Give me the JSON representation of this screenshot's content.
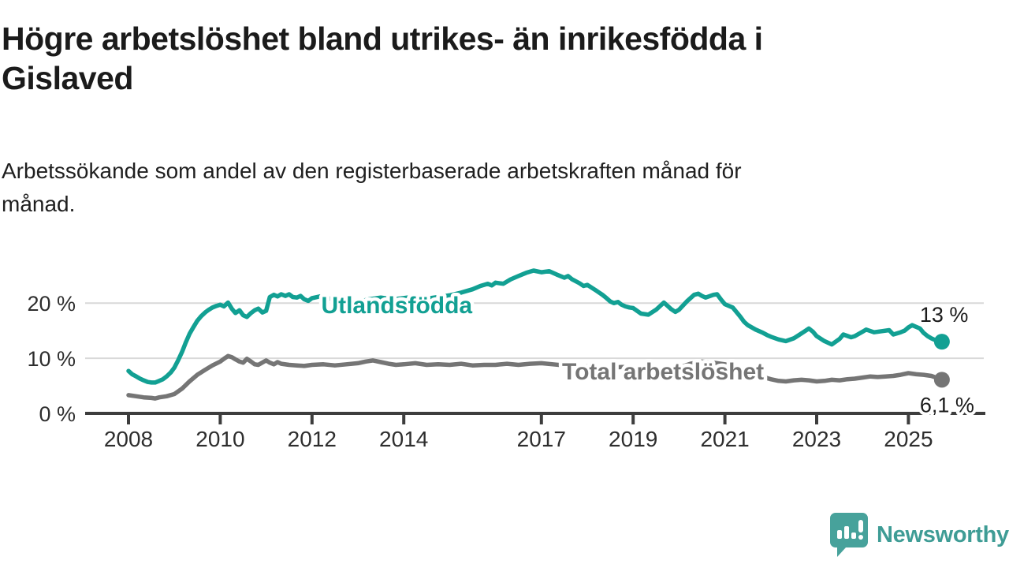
{
  "header": {
    "title_line1": "Högre arbetslöshet bland utrikes- än inrikesfödda i",
    "title_line2": "Gislaved",
    "subtitle_line1": "Arbetssökande som andel av den registerbaserade arbetskraften månad för",
    "subtitle_line2": "månad."
  },
  "branding": {
    "logo_text": "Newsworthy",
    "logo_color": "#3e9c95",
    "logo_bubble_color": "#47a29b"
  },
  "chart_data": {
    "type": "line",
    "title": "Högre arbetslöshet bland utrikes- än inrikesfödda i Gislaved",
    "subtitle": "Arbetssökande som andel av den registerbaserade arbetskraften månad för månad.",
    "x_tick_labels": [
      "2008",
      "2010",
      "2012",
      "2014",
      "2017",
      "2019",
      "2021",
      "2023",
      "2025"
    ],
    "x_tick_years": [
      2008,
      2010,
      2012,
      2014,
      2017,
      2019,
      2021,
      2023,
      2025
    ],
    "y_ticks": [
      {
        "value": 0,
        "label": "0 %"
      },
      {
        "value": 10,
        "label": "10 %"
      },
      {
        "value": 20,
        "label": "20 %"
      }
    ],
    "x_range": [
      2008.0,
      2025.73
    ],
    "y_range": [
      0,
      29
    ],
    "grid": "horizontal-only",
    "legend_position": "inline-labels-on-lines",
    "axis_color": "#3d3d3d",
    "grid_color": "#d9d9d9",
    "tick_label_color": "#2e2e2e",
    "end_label_color": "#1b1b1b",
    "series": [
      {
        "name": "Utlandsfödda",
        "color": "#12a093",
        "end_value_label": "13 %",
        "label_anchor": {
          "year": 2012.2,
          "value": 19.6
        },
        "end_label_offset": {
          "dx": -28,
          "dy": -33
        },
        "points": [
          [
            2008.0,
            7.7
          ],
          [
            2008.08,
            7.1
          ],
          [
            2008.17,
            6.7
          ],
          [
            2008.25,
            6.3
          ],
          [
            2008.33,
            6.0
          ],
          [
            2008.42,
            5.7
          ],
          [
            2008.5,
            5.6
          ],
          [
            2008.58,
            5.6
          ],
          [
            2008.67,
            5.9
          ],
          [
            2008.75,
            6.2
          ],
          [
            2008.83,
            6.7
          ],
          [
            2008.92,
            7.4
          ],
          [
            2009.0,
            8.3
          ],
          [
            2009.08,
            9.6
          ],
          [
            2009.17,
            11.2
          ],
          [
            2009.25,
            12.9
          ],
          [
            2009.33,
            14.4
          ],
          [
            2009.42,
            15.7
          ],
          [
            2009.5,
            16.8
          ],
          [
            2009.58,
            17.6
          ],
          [
            2009.67,
            18.3
          ],
          [
            2009.75,
            18.8
          ],
          [
            2009.83,
            19.2
          ],
          [
            2009.92,
            19.5
          ],
          [
            2010.0,
            19.7
          ],
          [
            2010.08,
            19.4
          ],
          [
            2010.17,
            20.1
          ],
          [
            2010.25,
            19.0
          ],
          [
            2010.33,
            18.2
          ],
          [
            2010.42,
            18.7
          ],
          [
            2010.5,
            17.8
          ],
          [
            2010.58,
            17.5
          ],
          [
            2010.67,
            18.2
          ],
          [
            2010.75,
            18.7
          ],
          [
            2010.83,
            19.0
          ],
          [
            2010.92,
            18.3
          ],
          [
            2011.0,
            18.6
          ],
          [
            2011.08,
            21.1
          ],
          [
            2011.17,
            21.5
          ],
          [
            2011.25,
            21.2
          ],
          [
            2011.33,
            21.6
          ],
          [
            2011.42,
            21.3
          ],
          [
            2011.5,
            21.6
          ],
          [
            2011.58,
            21.1
          ],
          [
            2011.67,
            21.0
          ],
          [
            2011.75,
            21.3
          ],
          [
            2011.83,
            20.7
          ],
          [
            2011.92,
            20.4
          ],
          [
            2012.0,
            20.9
          ],
          [
            2012.17,
            21.2
          ],
          [
            2012.33,
            20.7
          ],
          [
            2012.5,
            21.0
          ],
          [
            2012.67,
            20.4
          ],
          [
            2012.83,
            20.7
          ],
          [
            2013.0,
            20.2
          ],
          [
            2013.25,
            20.7
          ],
          [
            2013.5,
            21.0
          ],
          [
            2013.75,
            20.7
          ],
          [
            2014.0,
            20.9
          ],
          [
            2014.25,
            21.2
          ],
          [
            2014.5,
            20.8
          ],
          [
            2014.75,
            21.1
          ],
          [
            2015.0,
            21.4
          ],
          [
            2015.25,
            21.9
          ],
          [
            2015.5,
            22.5
          ],
          [
            2015.67,
            23.1
          ],
          [
            2015.83,
            23.5
          ],
          [
            2015.92,
            23.2
          ],
          [
            2016.0,
            23.7
          ],
          [
            2016.17,
            23.5
          ],
          [
            2016.33,
            24.3
          ],
          [
            2016.5,
            24.9
          ],
          [
            2016.67,
            25.5
          ],
          [
            2016.83,
            25.9
          ],
          [
            2017.0,
            25.6
          ],
          [
            2017.17,
            25.8
          ],
          [
            2017.33,
            25.2
          ],
          [
            2017.5,
            24.6
          ],
          [
            2017.58,
            24.9
          ],
          [
            2017.67,
            24.3
          ],
          [
            2017.83,
            23.6
          ],
          [
            2017.92,
            23.1
          ],
          [
            2018.0,
            23.3
          ],
          [
            2018.17,
            22.4
          ],
          [
            2018.33,
            21.5
          ],
          [
            2018.42,
            20.9
          ],
          [
            2018.5,
            20.3
          ],
          [
            2018.58,
            20.0
          ],
          [
            2018.67,
            20.2
          ],
          [
            2018.75,
            19.7
          ],
          [
            2018.83,
            19.4
          ],
          [
            2018.92,
            19.2
          ],
          [
            2019.0,
            19.1
          ],
          [
            2019.17,
            18.1
          ],
          [
            2019.33,
            17.9
          ],
          [
            2019.5,
            18.8
          ],
          [
            2019.67,
            20.1
          ],
          [
            2019.83,
            18.9
          ],
          [
            2019.92,
            18.4
          ],
          [
            2020.0,
            18.8
          ],
          [
            2020.17,
            20.3
          ],
          [
            2020.33,
            21.5
          ],
          [
            2020.42,
            21.7
          ],
          [
            2020.5,
            21.3
          ],
          [
            2020.58,
            21.0
          ],
          [
            2020.75,
            21.5
          ],
          [
            2020.83,
            21.6
          ],
          [
            2020.92,
            20.6
          ],
          [
            2021.0,
            19.8
          ],
          [
            2021.17,
            19.2
          ],
          [
            2021.33,
            17.6
          ],
          [
            2021.42,
            16.6
          ],
          [
            2021.5,
            16.0
          ],
          [
            2021.67,
            15.2
          ],
          [
            2021.83,
            14.6
          ],
          [
            2021.92,
            14.2
          ],
          [
            2022.0,
            13.9
          ],
          [
            2022.17,
            13.4
          ],
          [
            2022.33,
            13.1
          ],
          [
            2022.5,
            13.6
          ],
          [
            2022.67,
            14.5
          ],
          [
            2022.83,
            15.4
          ],
          [
            2022.92,
            14.8
          ],
          [
            2023.0,
            14.0
          ],
          [
            2023.17,
            13.1
          ],
          [
            2023.33,
            12.5
          ],
          [
            2023.5,
            13.5
          ],
          [
            2023.58,
            14.3
          ],
          [
            2023.75,
            13.8
          ],
          [
            2023.83,
            14.0
          ],
          [
            2024.0,
            14.8
          ],
          [
            2024.08,
            15.2
          ],
          [
            2024.25,
            14.7
          ],
          [
            2024.42,
            14.9
          ],
          [
            2024.58,
            15.1
          ],
          [
            2024.67,
            14.3
          ],
          [
            2024.83,
            14.7
          ],
          [
            2024.92,
            15.0
          ],
          [
            2025.0,
            15.6
          ],
          [
            2025.08,
            16.0
          ],
          [
            2025.25,
            15.4
          ],
          [
            2025.33,
            14.6
          ],
          [
            2025.42,
            14.0
          ],
          [
            2025.5,
            13.6
          ],
          [
            2025.58,
            13.3
          ],
          [
            2025.73,
            13.0
          ]
        ]
      },
      {
        "name": "Total arbetslöshet",
        "color": "#757575",
        "end_value_label": "6,1 %",
        "label_anchor": {
          "year": 2017.45,
          "value": 7.6
        },
        "end_label_offset": {
          "dx": -28,
          "dy": 33
        },
        "points": [
          [
            2008.0,
            3.3
          ],
          [
            2008.17,
            3.1
          ],
          [
            2008.33,
            2.9
          ],
          [
            2008.5,
            2.8
          ],
          [
            2008.58,
            2.7
          ],
          [
            2008.67,
            2.9
          ],
          [
            2008.83,
            3.1
          ],
          [
            2009.0,
            3.5
          ],
          [
            2009.17,
            4.5
          ],
          [
            2009.33,
            5.8
          ],
          [
            2009.5,
            7.0
          ],
          [
            2009.67,
            7.9
          ],
          [
            2009.83,
            8.7
          ],
          [
            2010.0,
            9.4
          ],
          [
            2010.08,
            9.9
          ],
          [
            2010.17,
            10.4
          ],
          [
            2010.25,
            10.2
          ],
          [
            2010.33,
            9.8
          ],
          [
            2010.42,
            9.4
          ],
          [
            2010.5,
            9.2
          ],
          [
            2010.58,
            9.9
          ],
          [
            2010.67,
            9.4
          ],
          [
            2010.75,
            8.9
          ],
          [
            2010.83,
            8.8
          ],
          [
            2011.0,
            9.6
          ],
          [
            2011.08,
            9.2
          ],
          [
            2011.17,
            8.9
          ],
          [
            2011.25,
            9.3
          ],
          [
            2011.33,
            9.0
          ],
          [
            2011.5,
            8.8
          ],
          [
            2011.67,
            8.7
          ],
          [
            2011.83,
            8.6
          ],
          [
            2012.0,
            8.8
          ],
          [
            2012.25,
            8.9
          ],
          [
            2012.5,
            8.7
          ],
          [
            2012.75,
            8.9
          ],
          [
            2013.0,
            9.1
          ],
          [
            2013.17,
            9.4
          ],
          [
            2013.33,
            9.6
          ],
          [
            2013.5,
            9.3
          ],
          [
            2013.67,
            9.0
          ],
          [
            2013.83,
            8.8
          ],
          [
            2014.0,
            8.9
          ],
          [
            2014.25,
            9.1
          ],
          [
            2014.5,
            8.8
          ],
          [
            2014.75,
            8.9
          ],
          [
            2015.0,
            8.8
          ],
          [
            2015.25,
            9.0
          ],
          [
            2015.5,
            8.7
          ],
          [
            2015.75,
            8.8
          ],
          [
            2016.0,
            8.8
          ],
          [
            2016.25,
            9.0
          ],
          [
            2016.5,
            8.8
          ],
          [
            2016.75,
            9.0
          ],
          [
            2017.0,
            9.1
          ],
          [
            2017.25,
            8.9
          ],
          [
            2017.5,
            8.7
          ],
          [
            2017.75,
            8.6
          ],
          [
            2018.0,
            8.5
          ],
          [
            2018.25,
            8.4
          ],
          [
            2018.5,
            8.3
          ],
          [
            2018.75,
            8.4
          ],
          [
            2019.0,
            8.4
          ],
          [
            2019.25,
            8.2
          ],
          [
            2019.5,
            8.1
          ],
          [
            2019.75,
            8.2
          ],
          [
            2020.0,
            8.3
          ],
          [
            2020.25,
            9.0
          ],
          [
            2020.5,
            9.4
          ],
          [
            2020.75,
            9.2
          ],
          [
            2021.0,
            8.9
          ],
          [
            2021.25,
            8.4
          ],
          [
            2021.5,
            7.6
          ],
          [
            2021.75,
            6.8
          ],
          [
            2022.0,
            6.2
          ],
          [
            2022.17,
            5.9
          ],
          [
            2022.33,
            5.8
          ],
          [
            2022.5,
            6.0
          ],
          [
            2022.67,
            6.1
          ],
          [
            2022.83,
            6.0
          ],
          [
            2023.0,
            5.8
          ],
          [
            2023.17,
            5.9
          ],
          [
            2023.33,
            6.1
          ],
          [
            2023.5,
            6.0
          ],
          [
            2023.67,
            6.2
          ],
          [
            2023.83,
            6.3
          ],
          [
            2024.0,
            6.5
          ],
          [
            2024.17,
            6.7
          ],
          [
            2024.33,
            6.6
          ],
          [
            2024.5,
            6.7
          ],
          [
            2024.67,
            6.8
          ],
          [
            2024.83,
            7.0
          ],
          [
            2025.0,
            7.3
          ],
          [
            2025.17,
            7.1
          ],
          [
            2025.33,
            7.0
          ],
          [
            2025.5,
            6.8
          ],
          [
            2025.6,
            6.5
          ],
          [
            2025.73,
            6.1
          ]
        ]
      }
    ]
  }
}
